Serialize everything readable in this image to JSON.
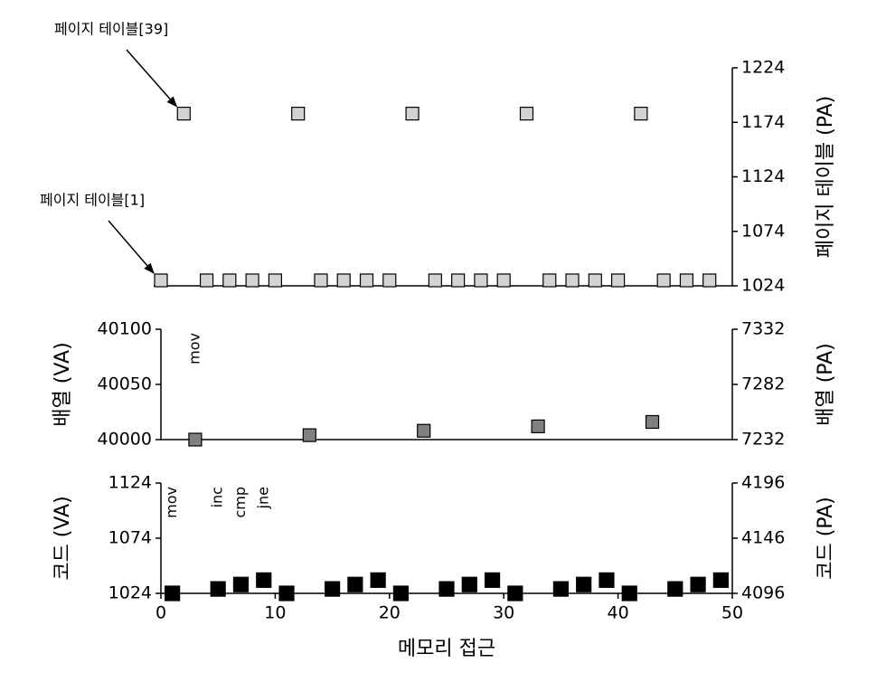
{
  "chart_data": [
    {
      "type": "scatter",
      "y2label": "페이지 테이블 (PA)",
      "y2lim": [
        1024,
        1224
      ],
      "y2ticks": [
        1024,
        1074,
        1124,
        1174,
        1224
      ],
      "series": [
        {
          "color": "#d3d3d3",
          "axis": "y2",
          "x": [
            2,
            12,
            22,
            32,
            42
          ],
          "values": [
            1182,
            1182,
            1182,
            1182,
            1182
          ]
        },
        {
          "color": "#d3d3d3",
          "axis": "y2",
          "x": [
            0,
            4,
            6,
            8,
            10,
            14,
            16,
            18,
            20,
            24,
            26,
            28,
            30,
            34,
            36,
            38,
            40,
            44,
            46,
            48
          ],
          "values": [
            1029,
            1029,
            1029,
            1029,
            1029,
            1029,
            1029,
            1029,
            1029,
            1029,
            1029,
            1029,
            1029,
            1029,
            1029,
            1029,
            1029,
            1029,
            1029,
            1029
          ]
        }
      ],
      "annotations": [
        {
          "text": "페이지 테이블[39]",
          "x": 2,
          "y": 1182
        },
        {
          "text": "페이지 테이블[1]",
          "x": 0,
          "y": 1029
        }
      ]
    },
    {
      "type": "scatter",
      "ylabel": "배열 (VA)",
      "ylim": [
        40000,
        40100
      ],
      "yticks": [
        40000,
        40050,
        40100
      ],
      "y2label": "배열 (PA)",
      "y2lim": [
        7232,
        7332
      ],
      "y2ticks": [
        7232,
        7282,
        7332
      ],
      "series": [
        {
          "color": "#808080",
          "x": [
            3,
            13,
            23,
            33,
            43
          ],
          "values": [
            40000,
            40004,
            40008,
            40012,
            40016
          ]
        }
      ],
      "instruction_labels": [
        {
          "text": "mov",
          "x": 3
        }
      ]
    },
    {
      "type": "scatter",
      "ylabel": "코드 (VA)",
      "ylim": [
        1024,
        1124
      ],
      "yticks": [
        1024,
        1074,
        1124
      ],
      "y2label": "코드 (PA)",
      "y2lim": [
        4096,
        4196
      ],
      "y2ticks": [
        4096,
        4146,
        4196
      ],
      "xlabel": "메모리 접근",
      "xlim": [
        0,
        50
      ],
      "xticks": [
        0,
        10,
        20,
        30,
        40,
        50
      ],
      "series": [
        {
          "color": "#000000",
          "x": [
            1,
            5,
            7,
            9,
            11,
            15,
            17,
            19,
            21,
            25,
            27,
            29,
            31,
            35,
            37,
            39,
            41,
            45,
            47,
            49
          ],
          "values": [
            1024,
            1028,
            1032,
            1036,
            1024,
            1028,
            1032,
            1036,
            1024,
            1028,
            1032,
            1036,
            1024,
            1028,
            1032,
            1036,
            1024,
            1028,
            1032,
            1036
          ]
        }
      ],
      "instruction_labels": [
        {
          "text": "mov",
          "x": 1
        },
        {
          "text": "inc",
          "x": 5
        },
        {
          "text": "cmp",
          "x": 7
        },
        {
          "text": "jne",
          "x": 9
        }
      ]
    }
  ]
}
